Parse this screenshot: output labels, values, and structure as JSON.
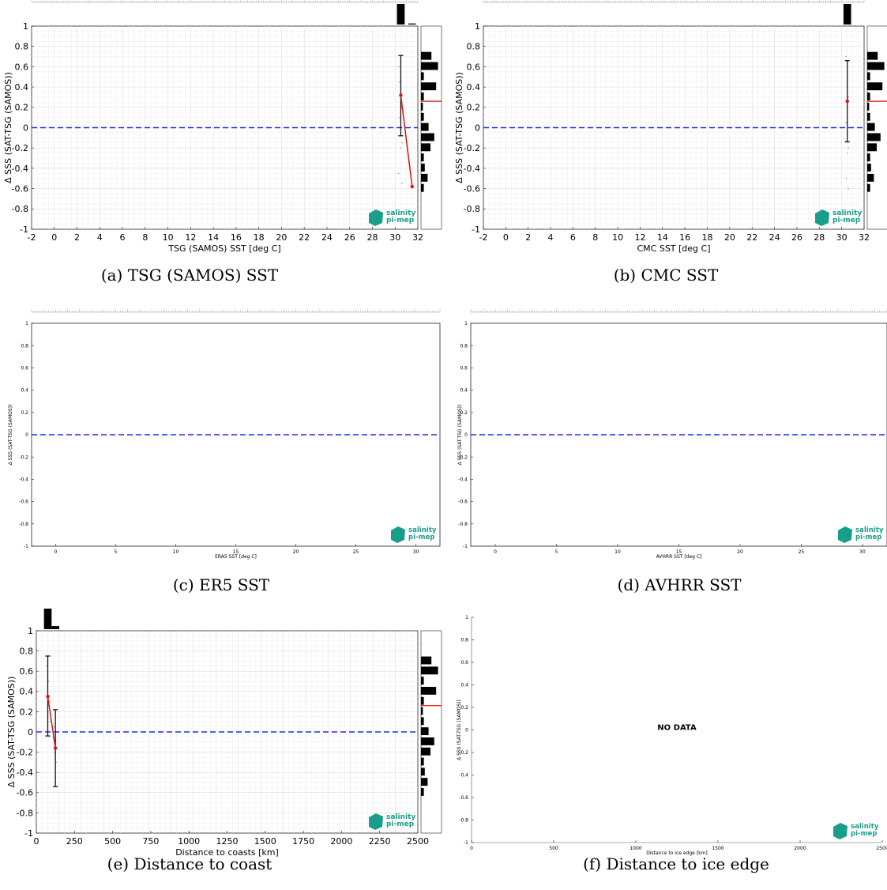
{
  "figure": {
    "logo": {
      "line1": "salinity",
      "line2": "pi-mep"
    },
    "accent_colors": {
      "zero_line": "#1f2ee8",
      "mean_line": "#e01010",
      "logo": "#1a9e8c"
    }
  },
  "panels": [
    {
      "id": "a",
      "caption": "(a) TSG (SAMOS) SST",
      "chart_data": {
        "type": "scatter",
        "xlabel": "TSG (SAMOS) SST [deg C]",
        "ylabel": "Δ SSS (SAT-TSG (SAMOS))",
        "xlim": [
          -2,
          32
        ],
        "ylim": [
          -1,
          1
        ],
        "xticks": [
          "-2",
          "0",
          "2",
          "4",
          "6",
          "8",
          "10",
          "12",
          "14",
          "16",
          "18",
          "20",
          "22",
          "24",
          "26",
          "28",
          "30",
          "32"
        ],
        "yticks": [
          "-1",
          "-0.8",
          "-0.6",
          "-0.4",
          "-0.2",
          "0",
          "0.2",
          "0.4",
          "0.6",
          "0.8",
          "1"
        ],
        "zero_line": 0,
        "series": [
          {
            "x": [
              30.5,
              31.5
            ],
            "y": [
              0.32,
              -0.58
            ],
            "err_low": [
              -0.08,
              null
            ],
            "err_high": [
              0.71,
              null
            ]
          }
        ],
        "scatter_points": {
          "x": [
            30.3,
            30.4,
            30.5,
            30.6,
            30.4,
            30.6,
            30.5,
            30.3,
            30.6
          ],
          "y": [
            0.6,
            0.45,
            0.38,
            0.2,
            0.1,
            -0.15,
            -0.2,
            -0.45,
            -0.55
          ]
        },
        "top_histogram": {
          "x": [
            30.5,
            31.5
          ],
          "counts": [
            1.0,
            0.05
          ]
        },
        "right_histogram": {
          "y": [
            0.7,
            0.6,
            0.5,
            0.4,
            0.3,
            0.2,
            0.1,
            0.0,
            -0.1,
            -0.2,
            -0.3,
            -0.4,
            -0.5,
            -0.6
          ],
          "counts": [
            0.55,
            0.9,
            0.15,
            0.8,
            0.15,
            0.1,
            0.15,
            0.4,
            0.7,
            0.5,
            0.15,
            0.2,
            0.35,
            0.15
          ]
        },
        "median_line": 0.26,
        "grid": true,
        "no_data": false
      }
    },
    {
      "id": "b",
      "caption": "(b) CMC SST",
      "chart_data": {
        "type": "scatter",
        "xlabel": "CMC SST [deg C]",
        "ylabel": "Δ SSS (SAT-TSG (SAMOS))",
        "xlim": [
          -2,
          32
        ],
        "ylim": [
          -1,
          1
        ],
        "xticks": [
          "-2",
          "0",
          "2",
          "4",
          "6",
          "8",
          "10",
          "12",
          "14",
          "16",
          "18",
          "20",
          "22",
          "24",
          "26",
          "28",
          "30",
          "32"
        ],
        "yticks": [
          "-1",
          "-0.8",
          "-0.6",
          "-0.4",
          "-0.2",
          "0",
          "0.2",
          "0.4",
          "0.6",
          "0.8",
          "1"
        ],
        "zero_line": 0,
        "series": [
          {
            "x": [
              30.5
            ],
            "y": [
              0.26
            ],
            "err_low": [
              -0.14
            ],
            "err_high": [
              0.66
            ]
          }
        ],
        "scatter_points": {
          "x": [
            30.4,
            30.5,
            30.6,
            30.4,
            30.6,
            30.5,
            30.4,
            30.6
          ],
          "y": [
            0.7,
            0.42,
            0.3,
            0.05,
            -0.2,
            -0.25,
            -0.5,
            -0.6
          ]
        },
        "top_histogram": {
          "x": [
            30.5
          ],
          "counts": [
            1.0
          ]
        },
        "right_histogram": {
          "y": [
            0.7,
            0.6,
            0.5,
            0.4,
            0.3,
            0.2,
            0.1,
            0.0,
            -0.1,
            -0.2,
            -0.3,
            -0.4,
            -0.5,
            -0.6
          ],
          "counts": [
            0.55,
            0.9,
            0.15,
            0.8,
            0.15,
            0.1,
            0.15,
            0.4,
            0.7,
            0.5,
            0.15,
            0.2,
            0.35,
            0.15
          ]
        },
        "median_line": 0.26,
        "grid": true,
        "no_data": false
      }
    },
    {
      "id": "c",
      "caption": "(c) ER5 SST",
      "chart_data": {
        "type": "scatter",
        "xlabel": "ERA5 SST [deg C]",
        "ylabel": "Δ SSS (SAT-TSG (SAMOS))",
        "xlim": [
          -2,
          32
        ],
        "ylim": [
          -1,
          1
        ],
        "xticks": [
          "0",
          "5",
          "10",
          "15",
          "20",
          "25",
          "30"
        ],
        "xtick_values": [
          0,
          5,
          10,
          15,
          20,
          25,
          30
        ],
        "yticks": [
          "-1",
          "-0.8",
          "-0.6",
          "-0.4",
          "-0.2",
          "0",
          "0.2",
          "0.4",
          "0.6",
          "0.8",
          "1"
        ],
        "zero_line": 0,
        "series": [],
        "grid": false,
        "no_data": false
      }
    },
    {
      "id": "d",
      "caption": "(d) AVHRR SST",
      "chart_data": {
        "type": "scatter",
        "xlabel": "AVHRR SST [deg C]",
        "ylabel": "Δ SSS (SAT-TSG (SAMOS))",
        "xlim": [
          -2,
          32
        ],
        "ylim": [
          -1,
          1
        ],
        "xticks": [
          "0",
          "5",
          "10",
          "15",
          "20",
          "25",
          "30"
        ],
        "xtick_values": [
          0,
          5,
          10,
          15,
          20,
          25,
          30
        ],
        "yticks": [
          "-1",
          "-0.8",
          "-0.6",
          "-0.4",
          "-0.2",
          "0",
          "0.2",
          "0.4",
          "0.6",
          "0.8",
          "1"
        ],
        "zero_line": 0,
        "series": [],
        "grid": false,
        "no_data": false
      }
    },
    {
      "id": "e",
      "caption": "(e) Distance to coast",
      "chart_data": {
        "type": "scatter",
        "xlabel": "Distance to coasts [km]",
        "ylabel": "Δ SSS (SAT-TSG (SAMOS))",
        "xlim": [
          0,
          2500
        ],
        "ylim": [
          -1,
          1
        ],
        "xticks": [
          "0",
          "250",
          "500",
          "750",
          "1000",
          "1250",
          "1500",
          "1750",
          "2000",
          "2250",
          "2500"
        ],
        "yticks": [
          "-1",
          "-0.8",
          "-0.6",
          "-0.4",
          "-0.2",
          "0",
          "0.2",
          "0.4",
          "0.6",
          "0.8",
          "1"
        ],
        "zero_line": 0,
        "series": [
          {
            "x": [
              75,
              125
            ],
            "y": [
              0.35,
              -0.16
            ],
            "err_low": [
              -0.04,
              -0.54
            ],
            "err_high": [
              0.75,
              0.22
            ]
          }
        ],
        "scatter_points": {
          "x": [
            70,
            80,
            85,
            90,
            110,
            120,
            130,
            125,
            115
          ],
          "y": [
            0.65,
            0.5,
            0.3,
            0.1,
            -0.05,
            -0.2,
            -0.3,
            -0.45,
            0.05
          ]
        },
        "top_histogram": {
          "x": [
            75,
            125
          ],
          "counts": [
            1.0,
            0.15
          ]
        },
        "right_histogram": {
          "y": [
            0.7,
            0.6,
            0.5,
            0.4,
            0.3,
            0.2,
            0.1,
            0.0,
            -0.1,
            -0.2,
            -0.3,
            -0.4,
            -0.5,
            -0.6
          ],
          "counts": [
            0.55,
            0.9,
            0.15,
            0.8,
            0.15,
            0.1,
            0.15,
            0.4,
            0.7,
            0.5,
            0.15,
            0.2,
            0.35,
            0.15
          ]
        },
        "median_line": 0.26,
        "grid": true,
        "no_data": false
      }
    },
    {
      "id": "f",
      "caption": "(f) Distance to ice edge",
      "chart_data": {
        "type": "scatter",
        "xlabel": "Distance to ice edge [km]",
        "ylabel": "Δ SSS (SAT-TSG (SAMOS))",
        "xlim": [
          0,
          2500
        ],
        "ylim": [
          -1,
          1
        ],
        "xticks": [
          "0",
          "500",
          "1000",
          "1500",
          "2000",
          "2500"
        ],
        "yticks": [
          "-1",
          "-0.8",
          "-0.6",
          "-0.4",
          "-0.2",
          "0",
          "0.2",
          "0.4",
          "0.6",
          "0.8",
          "1"
        ],
        "series": [],
        "grid": false,
        "no_data": true,
        "annotation": "NO DATA"
      }
    }
  ]
}
